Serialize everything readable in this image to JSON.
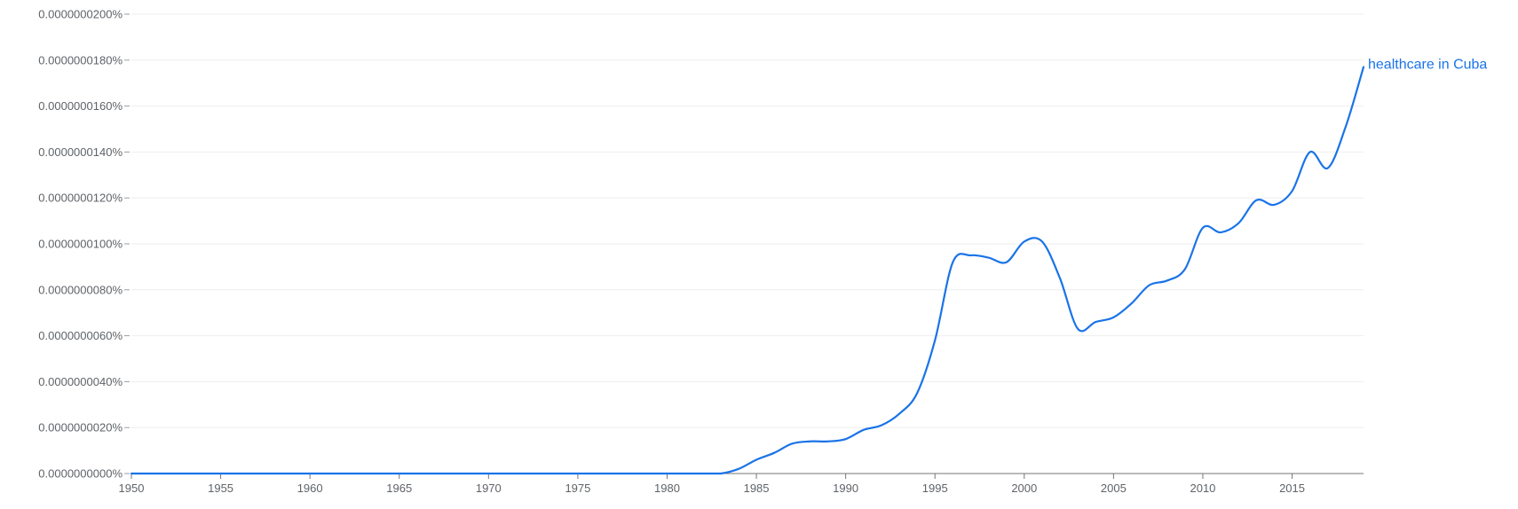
{
  "chart_data": {
    "type": "line",
    "title": "",
    "xlabel": "",
    "ylabel": "",
    "xlim": [
      1950,
      2019
    ],
    "ylim": [
      0,
      2e-08
    ],
    "grid": true,
    "legend": "inline label at line end",
    "y_ticks": [
      {
        "value": 0.0,
        "label": "0.0000000000%"
      },
      {
        "value": 2e-09,
        "label": "0.0000000020%"
      },
      {
        "value": 4e-09,
        "label": "0.0000000040%"
      },
      {
        "value": 6e-09,
        "label": "0.0000000060%"
      },
      {
        "value": 8e-09,
        "label": "0.0000000080%"
      },
      {
        "value": 1e-08,
        "label": "0.0000000100%"
      },
      {
        "value": 1.2e-08,
        "label": "0.0000000120%"
      },
      {
        "value": 1.4e-08,
        "label": "0.0000000140%"
      },
      {
        "value": 1.6e-08,
        "label": "0.0000000160%"
      },
      {
        "value": 1.8e-08,
        "label": "0.0000000180%"
      },
      {
        "value": 2e-08,
        "label": "0.0000000200%"
      }
    ],
    "x_ticks": [
      {
        "value": 1950,
        "label": "1950"
      },
      {
        "value": 1955,
        "label": "1955"
      },
      {
        "value": 1960,
        "label": "1960"
      },
      {
        "value": 1965,
        "label": "1965"
      },
      {
        "value": 1970,
        "label": "1970"
      },
      {
        "value": 1975,
        "label": "1975"
      },
      {
        "value": 1980,
        "label": "1980"
      },
      {
        "value": 1985,
        "label": "1985"
      },
      {
        "value": 1990,
        "label": "1990"
      },
      {
        "value": 1995,
        "label": "1995"
      },
      {
        "value": 2000,
        "label": "2000"
      },
      {
        "value": 2005,
        "label": "2005"
      },
      {
        "value": 2010,
        "label": "2010"
      },
      {
        "value": 2015,
        "label": "2015"
      }
    ],
    "series": [
      {
        "name": "healthcare in Cuba",
        "color": "#1a73e8",
        "x": [
          1950,
          1955,
          1960,
          1965,
          1970,
          1975,
          1980,
          1982,
          1983,
          1984,
          1985,
          1986,
          1987,
          1988,
          1989,
          1990,
          1991,
          1992,
          1993,
          1994,
          1995,
          1996,
          1997,
          1998,
          1999,
          2000,
          2001,
          2002,
          2003,
          2004,
          2005,
          2006,
          2007,
          2008,
          2009,
          2010,
          2011,
          2012,
          2013,
          2014,
          2015,
          2016,
          2017,
          2018,
          2019
        ],
        "values": [
          0,
          0,
          0,
          0,
          0,
          0,
          0,
          0,
          0,
          2e-10,
          6e-10,
          9e-10,
          1.3e-09,
          1.4e-09,
          1.4e-09,
          1.5e-09,
          1.9e-09,
          2.1e-09,
          2.6e-09,
          3.5e-09,
          5.8e-09,
          9.2e-09,
          9.5e-09,
          9.4e-09,
          9.2e-09,
          1.01e-08,
          1.01e-08,
          8.5e-09,
          6.3e-09,
          6.6e-09,
          6.8e-09,
          7.4e-09,
          8.2e-09,
          8.4e-09,
          8.9e-09,
          1.07e-08,
          1.05e-08,
          1.09e-08,
          1.19e-08,
          1.17e-08,
          1.23e-08,
          1.4e-08,
          1.33e-08,
          1.51e-08,
          1.77e-08
        ]
      }
    ]
  }
}
